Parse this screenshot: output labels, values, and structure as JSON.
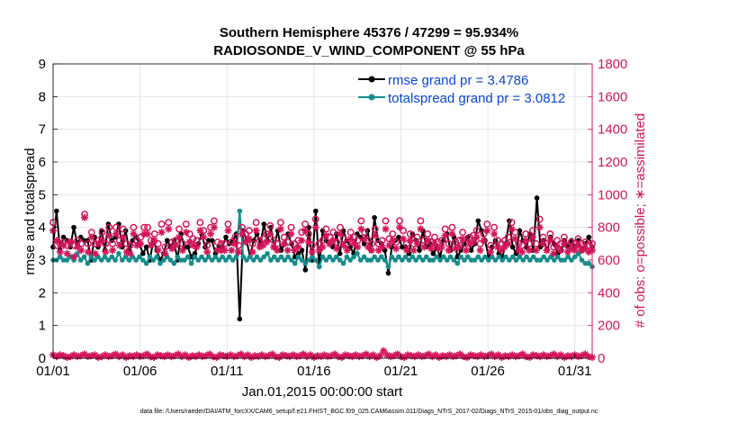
{
  "chart_data": {
    "type": "line",
    "title": "Southern Hemisphere 45376 / 47299 = 95.934%",
    "subtitle": "RADIOSONDE_V_WIND_COMPONENT @ 55 hPa",
    "xlabel": "Jan.01,2015 00:00:00 start",
    "ylabel_left": "rmse and totalspread",
    "ylabel_right": "# of obs: o=possible; ∗=assimilated",
    "footer": "data file: /Users/raeder/DAI/ATM_forcXX/CAM6_setup/f.e21.FHIST_BGC.f09_025.CAM6assim.011/Diags_NTrS_2017-02/Diags_NTrS_2015-01/obs_diag_output.nc",
    "x_ticks": [
      "01/01",
      "01/06",
      "01/11",
      "01/16",
      "01/21",
      "01/26",
      "01/31"
    ],
    "x_tick_days": [
      1,
      6,
      11,
      16,
      21,
      26,
      31
    ],
    "xlim": [
      1,
      32
    ],
    "ylim_left": [
      0,
      9
    ],
    "ylim_right": [
      0,
      1800
    ],
    "y_ticks_left": [
      "0",
      "1",
      "2",
      "3",
      "4",
      "5",
      "6",
      "7",
      "8",
      "9"
    ],
    "y_ticks_right": [
      "0",
      "200",
      "400",
      "600",
      "800",
      "1000",
      "1200",
      "1400",
      "1600",
      "1800"
    ],
    "colors": {
      "rmse": "#000000",
      "totalspread": "#148c8c",
      "obs": "#d4145a",
      "legend_text": "#0a46d8"
    },
    "legend": [
      {
        "name": "rmse grand pr = 3.4786",
        "key": "rmse"
      },
      {
        "name": "totalspread grand pr = 3.0812",
        "key": "totalspread"
      }
    ],
    "series": [
      {
        "name": "rmse",
        "axis": "left",
        "values": [
          3.4,
          4.5,
          3.3,
          3.7,
          3.6,
          3.4,
          4.0,
          3.5,
          3.7,
          3.6,
          3.6,
          3.0,
          3.7,
          3.4,
          3.9,
          3.3,
          4.1,
          3.6,
          3.7,
          4.1,
          3.4,
          3.9,
          3.3,
          3.6,
          3.7,
          3.5,
          3.2,
          3.4,
          3.0,
          3.6,
          3.3,
          3.0,
          3.2,
          3.6,
          3.4,
          3.6,
          3.0,
          3.8,
          3.4,
          3.4,
          3.1,
          3.2,
          3.5,
          3.8,
          3.4,
          3.6,
          3.6,
          3.2,
          3.4,
          3.4,
          3.7,
          3.5,
          3.6,
          3.8,
          1.2,
          3.9,
          3.6,
          3.1,
          3.6,
          3.8,
          3.5,
          4.1,
          3.6,
          4.0,
          3.4,
          3.9,
          3.3,
          3.5,
          3.8,
          3.5,
          3.1,
          3.2,
          3.3,
          2.7,
          4.0,
          3.0,
          4.5,
          2.8,
          3.9,
          3.6,
          3.5,
          3.4,
          3.8,
          3.2,
          3.9,
          3.6,
          3.4,
          3.2,
          3.8,
          3.7,
          3.5,
          3.9,
          3.3,
          4.3,
          3.6,
          3.5,
          3.3,
          2.6,
          3.4,
          3.6,
          3.7,
          3.4,
          3.4,
          3.2,
          3.8,
          3.6,
          3.3,
          3.9,
          3.4,
          3.5,
          3.2,
          3.4,
          3.1,
          3.6,
          3.8,
          3.3,
          3.7,
          3.1,
          3.3,
          3.5,
          3.7,
          3.3,
          3.5,
          4.2,
          3.9,
          3.6,
          3.1,
          3.4,
          3.6,
          3.2,
          3.1,
          3.5,
          4.2,
          3.4,
          3.2,
          3.9,
          3.6,
          3.4,
          3.8,
          3.3,
          4.9,
          3.4,
          3.6,
          3.3,
          3.7,
          3.5,
          3.2,
          3.3,
          3.6,
          3.4,
          3.6,
          3.4,
          3.6,
          3.3,
          3.5,
          3.7,
          3.4
        ]
      },
      {
        "name": "totalspread",
        "axis": "left",
        "values": [
          3.0,
          3.0,
          3.1,
          3.0,
          3.0,
          3.1,
          3.0,
          3.2,
          3.0,
          3.1,
          2.9,
          3.1,
          3.0,
          3.1,
          3.0,
          3.1,
          3.0,
          3.1,
          3.0,
          3.2,
          3.0,
          3.1,
          3.0,
          3.1,
          3.0,
          3.1,
          3.0,
          2.9,
          3.1,
          3.0,
          3.1,
          2.9,
          3.0,
          3.1,
          3.0,
          2.9,
          3.1,
          3.0,
          3.0,
          3.1,
          2.9,
          3.1,
          3.0,
          3.1,
          3.0,
          3.1,
          3.0,
          3.1,
          3.0,
          3.1,
          3.0,
          3.1,
          3.0,
          3.1,
          4.5,
          3.1,
          3.0,
          3.1,
          3.0,
          3.1,
          3.0,
          3.1,
          3.2,
          3.0,
          3.1,
          3.0,
          3.1,
          3.0,
          3.1,
          3.0,
          2.9,
          3.1,
          3.0,
          2.9,
          3.0,
          3.1,
          3.0,
          2.8,
          3.1,
          3.0,
          3.1,
          3.0,
          3.1,
          3.0,
          2.9,
          3.1,
          3.0,
          3.1,
          3.2,
          3.0,
          3.1,
          3.0,
          3.0,
          3.1,
          3.0,
          3.1,
          3.0,
          2.8,
          3.1,
          3.0,
          3.1,
          3.0,
          3.1,
          3.0,
          3.1,
          3.0,
          3.1,
          3.0,
          3.1,
          3.0,
          3.0,
          3.1,
          3.0,
          3.1,
          3.0,
          3.1,
          3.0,
          2.9,
          3.1,
          3.0,
          3.1,
          3.0,
          3.0,
          3.1,
          3.0,
          3.1,
          3.0,
          3.1,
          3.0,
          3.1,
          3.0,
          3.1,
          3.0,
          3.1,
          3.0,
          3.1,
          3.0,
          3.1,
          3.0,
          3.1,
          3.0,
          3.0,
          3.1,
          3.0,
          3.1,
          3.0,
          3.1,
          3.0,
          3.0,
          3.1,
          3.0,
          3.1,
          3.2,
          3.0,
          2.9,
          2.9,
          2.8
        ]
      },
      {
        "name": "obs_possible",
        "axis": "right",
        "values": [
          830,
          690,
          700,
          710,
          690,
          710,
          690,
          720,
          700,
          880,
          700,
          770,
          700,
          720,
          770,
          700,
          800,
          700,
          800,
          720,
          790,
          700,
          690,
          800,
          720,
          740,
          800,
          800,
          720,
          760,
          700,
          820,
          680,
          830,
          710,
          720,
          790,
          700,
          820,
          760,
          730,
          720,
          830,
          780,
          690,
          800,
          840,
          710,
          700,
          700,
          820,
          710,
          740,
          690,
          800,
          760,
          780,
          700,
          830,
          720,
          730,
          760,
          810,
          720,
          700,
          830,
          740,
          710,
          800,
          700,
          720,
          770,
          820,
          760,
          690,
          850,
          700,
          720,
          790,
          740,
          770,
          710,
          800,
          730,
          700,
          770,
          740,
          720,
          840,
          770,
          720,
          700,
          790,
          700,
          720,
          840,
          730,
          760,
          710,
          840,
          780,
          700,
          760,
          700,
          740,
          840,
          720,
          760,
          710,
          740,
          710,
          720,
          790,
          700,
          800,
          710,
          720,
          770,
          700,
          740,
          750,
          780,
          700,
          760,
          820,
          690,
          800,
          720,
          700,
          720,
          740,
          830,
          770,
          700,
          690,
          760,
          700,
          780,
          700,
          850,
          740,
          700,
          760,
          680,
          720,
          700,
          740,
          690,
          710,
          700,
          730,
          700,
          710,
          690,
          700
        ]
      },
      {
        "name": "obs_assimilated",
        "axis": "right",
        "values": [
          780,
          720,
          650,
          690,
          640,
          710,
          620,
          680,
          660,
          860,
          650,
          740,
          640,
          700,
          720,
          650,
          750,
          660,
          760,
          690,
          740,
          650,
          640,
          760,
          690,
          700,
          760,
          760,
          690,
          720,
          660,
          770,
          640,
          790,
          670,
          690,
          740,
          660,
          770,
          710,
          690,
          680,
          780,
          740,
          650,
          760,
          800,
          660,
          660,
          660,
          780,
          660,
          700,
          650,
          760,
          710,
          730,
          650,
          780,
          680,
          690,
          710,
          760,
          680,
          660,
          790,
          700,
          660,
          760,
          660,
          680,
          720,
          780,
          710,
          650,
          800,
          660,
          680,
          750,
          700,
          720,
          670,
          760,
          690,
          660,
          730,
          700,
          680,
          790,
          730,
          680,
          660,
          750,
          660,
          680,
          790,
          690,
          720,
          670,
          800,
          730,
          660,
          720,
          660,
          700,
          790,
          680,
          720,
          670,
          700,
          670,
          680,
          750,
          660,
          760,
          670,
          680,
          730,
          660,
          700,
          710,
          740,
          660,
          720,
          780,
          650,
          760,
          680,
          660,
          680,
          700,
          790,
          730,
          660,
          650,
          720,
          660,
          740,
          660,
          800,
          700,
          660,
          720,
          640,
          680,
          660,
          700,
          650,
          670,
          660,
          690,
          660,
          670,
          650,
          660
        ]
      },
      {
        "name": "obs_bottom",
        "axis": "right",
        "values": [
          20,
          10,
          20,
          15,
          5,
          10,
          20,
          10,
          15,
          25,
          10,
          15,
          20,
          5,
          10,
          20,
          10,
          15,
          25,
          10,
          20,
          5,
          15,
          10,
          20,
          10,
          15,
          25,
          10,
          5,
          20,
          15,
          10,
          20,
          10,
          15,
          25,
          10,
          20,
          5,
          15,
          10,
          20,
          10,
          15,
          25,
          10,
          5,
          20,
          15,
          10,
          20,
          10,
          15,
          25,
          10,
          20,
          5,
          15,
          10,
          20,
          10,
          15,
          25,
          10,
          5,
          20,
          15,
          10,
          20,
          10,
          15,
          25,
          10,
          20,
          5,
          15,
          10,
          20,
          10,
          15,
          25,
          10,
          5,
          20,
          15,
          10,
          20,
          10,
          15,
          25,
          10,
          20,
          5,
          15,
          45,
          20,
          10,
          15,
          25,
          10,
          5,
          20,
          15,
          10,
          20,
          10,
          15,
          25,
          10,
          20,
          5,
          15,
          10,
          20,
          10,
          15,
          25,
          10,
          5,
          20,
          15,
          10,
          20,
          10,
          15,
          25,
          10,
          20,
          5,
          15,
          10,
          20,
          10,
          15,
          25,
          10,
          5,
          20,
          15,
          10,
          20,
          10,
          15,
          25,
          10,
          20,
          5,
          15,
          10,
          20,
          10,
          15,
          25,
          10,
          5
        ]
      }
    ]
  }
}
